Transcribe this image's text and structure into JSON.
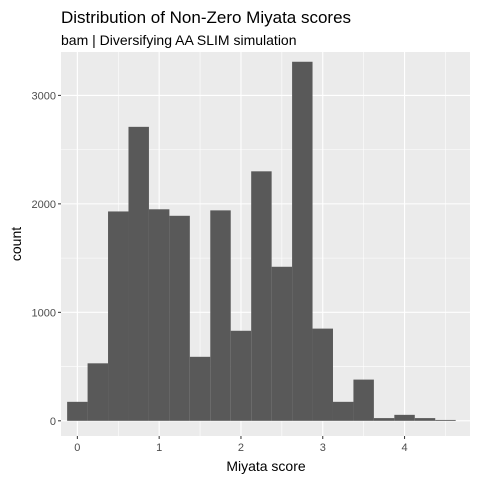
{
  "chart_data": {
    "type": "bar",
    "title": "Distribution of Non-Zero Miyata scores",
    "subtitle": "bam | Diversifying AA SLIM simulation",
    "xlabel": "Miyata score",
    "ylabel": "count",
    "xlim": [
      -0.2,
      4.8
    ],
    "ylim": [
      -140,
      3400
    ],
    "xticks": [
      0,
      1,
      2,
      3,
      4
    ],
    "yticks": [
      0,
      1000,
      2000,
      3000
    ],
    "xtick_labels": [
      "0",
      "1",
      "2",
      "3",
      "4"
    ],
    "ytick_labels": [
      "0",
      "1000",
      "2000",
      "3000"
    ],
    "grid": true,
    "bin_width": 0.25,
    "bins": [
      {
        "x": 0.0,
        "count": 175
      },
      {
        "x": 0.25,
        "count": 530
      },
      {
        "x": 0.5,
        "count": 1930
      },
      {
        "x": 0.75,
        "count": 2710
      },
      {
        "x": 1.0,
        "count": 1950
      },
      {
        "x": 1.25,
        "count": 1890
      },
      {
        "x": 1.5,
        "count": 590
      },
      {
        "x": 1.75,
        "count": 1940
      },
      {
        "x": 2.0,
        "count": 830
      },
      {
        "x": 2.25,
        "count": 2300
      },
      {
        "x": 2.5,
        "count": 1420
      },
      {
        "x": 2.75,
        "count": 3310
      },
      {
        "x": 3.0,
        "count": 850
      },
      {
        "x": 3.25,
        "count": 175
      },
      {
        "x": 3.5,
        "count": 380
      },
      {
        "x": 3.75,
        "count": 25
      },
      {
        "x": 4.0,
        "count": 55
      },
      {
        "x": 4.25,
        "count": 25
      },
      {
        "x": 4.5,
        "count": 8
      }
    ],
    "colors": {
      "panel_background": "#EBEBEB",
      "grid_major": "#FFFFFF",
      "bar_fill": "#595959",
      "text": "#000000",
      "tick_text": "#4D4D4D",
      "tick_mark": "#333333"
    }
  }
}
